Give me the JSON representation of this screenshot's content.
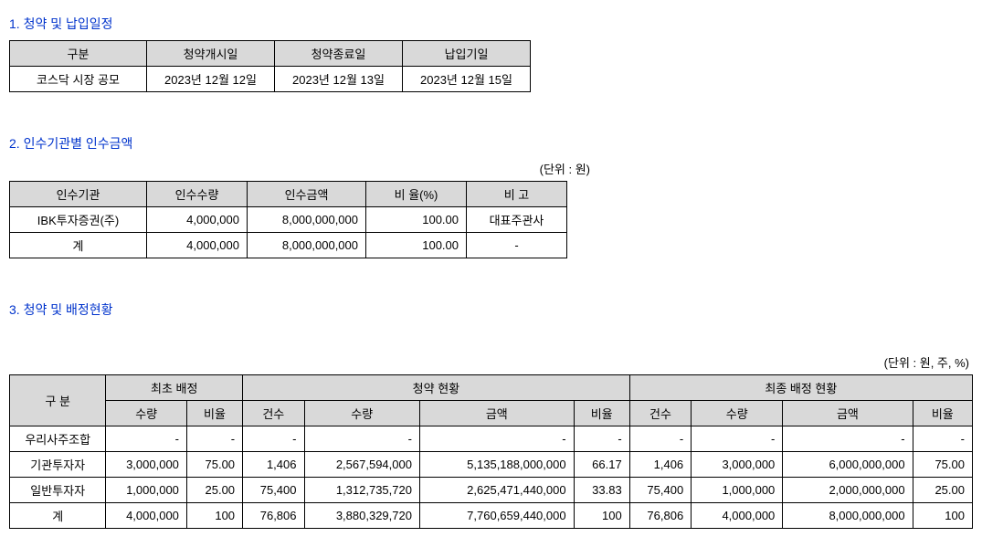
{
  "colors": {
    "title": "#0033cc",
    "header_bg": "#d9d9d9",
    "border": "#000000",
    "text": "#000000",
    "bg": "#ffffff"
  },
  "sec1": {
    "title": "1. 청약 및 납입일정",
    "headers": [
      "구분",
      "청약개시일",
      "청약종료일",
      "납입기일"
    ],
    "row": [
      "코스닥 시장 공모",
      "2023년 12월 12일",
      "2023년 12월 13일",
      "2023년 12월 15일"
    ]
  },
  "sec2": {
    "title": "2. 인수기관별 인수금액",
    "unit": "(단위 : 원)",
    "headers": [
      "인수기관",
      "인수수량",
      "인수금액",
      "비 율(%)",
      "비  고"
    ],
    "rows": [
      {
        "org": "IBK투자증권(주)",
        "qty": "4,000,000",
        "amt": "8,000,000,000",
        "ratio": "100.00",
        "note": "대표주관사"
      },
      {
        "org": "계",
        "qty": "4,000,000",
        "amt": "8,000,000,000",
        "ratio": "100.00",
        "note": "-"
      }
    ]
  },
  "sec3": {
    "title": "3. 청약 및 배정현황",
    "unit": "(단위 : 원, 주, %)",
    "h_top": [
      "구  분",
      "최초 배정",
      "청약 현황",
      "최종 배정 현황"
    ],
    "h_sub": [
      "수량",
      "비율",
      "건수",
      "수량",
      "금액",
      "비율",
      "건수",
      "수량",
      "금액",
      "비율"
    ],
    "rows": [
      {
        "label": "우리사주조합",
        "init_qty": "-",
        "init_r": "-",
        "s_cnt": "-",
        "s_qty": "-",
        "s_amt": "-",
        "s_r": "-",
        "f_cnt": "-",
        "f_qty": "-",
        "f_amt": "-",
        "f_r": "-"
      },
      {
        "label": "기관투자자",
        "init_qty": "3,000,000",
        "init_r": "75.00",
        "s_cnt": "1,406",
        "s_qty": "2,567,594,000",
        "s_amt": "5,135,188,000,000",
        "s_r": "66.17",
        "f_cnt": "1,406",
        "f_qty": "3,000,000",
        "f_amt": "6,000,000,000",
        "f_r": "75.00"
      },
      {
        "label": "일반투자자",
        "init_qty": "1,000,000",
        "init_r": "25.00",
        "s_cnt": "75,400",
        "s_qty": "1,312,735,720",
        "s_amt": "2,625,471,440,000",
        "s_r": "33.83",
        "f_cnt": "75,400",
        "f_qty": "1,000,000",
        "f_amt": "2,000,000,000",
        "f_r": "25.00"
      },
      {
        "label": "계",
        "init_qty": "4,000,000",
        "init_r": "100",
        "s_cnt": "76,806",
        "s_qty": "3,880,329,720",
        "s_amt": "7,760,659,440,000",
        "s_r": "100",
        "f_cnt": "76,806",
        "f_qty": "4,000,000",
        "f_amt": "8,000,000,000",
        "f_r": "100"
      }
    ]
  }
}
